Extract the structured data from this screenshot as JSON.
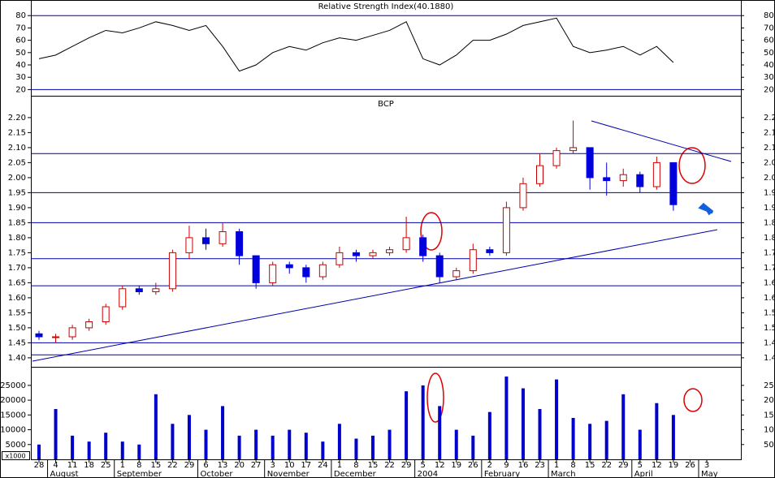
{
  "chart_data": [
    {
      "type": "line",
      "title": "Relative Strength Index(40.1880)",
      "color": "#000000",
      "values": [
        45,
        48,
        55,
        62,
        68,
        66,
        70,
        75,
        72,
        68,
        72,
        55,
        35,
        40,
        50,
        55,
        52,
        58,
        62,
        60,
        64,
        68,
        75,
        45,
        40,
        48,
        60,
        60,
        65,
        72,
        75,
        78,
        55,
        50,
        52,
        55,
        48,
        55,
        42,
        null,
        null
      ],
      "ylim": [
        15,
        92
      ],
      "yticks": [
        20,
        30,
        40,
        50,
        60,
        70,
        80
      ],
      "hlines": [
        80,
        20
      ]
    },
    {
      "type": "candlestick",
      "title": "BCP",
      "categories": [
        "28",
        "4",
        "11",
        "18",
        "25",
        "1",
        "8",
        "15",
        "22",
        "29",
        "6",
        "13",
        "20",
        "27",
        "3",
        "10",
        "17",
        "24",
        "1",
        "8",
        "15",
        "22",
        "29",
        "5",
        "12",
        "19",
        "26",
        "2",
        "9",
        "16",
        "23",
        "1",
        "8",
        "15",
        "22",
        "29",
        "5",
        "12",
        "19",
        "26",
        "3"
      ],
      "months": [
        null,
        "August",
        null,
        null,
        null,
        "September",
        null,
        null,
        null,
        null,
        "October",
        null,
        null,
        null,
        "November",
        null,
        null,
        null,
        "December",
        null,
        null,
        null,
        null,
        "2004",
        null,
        null,
        null,
        "February",
        null,
        null,
        null,
        "March",
        null,
        null,
        null,
        null,
        "April",
        null,
        null,
        null,
        "May"
      ],
      "open": [
        1.48,
        1.47,
        1.47,
        1.5,
        1.52,
        1.57,
        1.63,
        1.62,
        1.63,
        1.75,
        1.8,
        1.78,
        1.82,
        1.74,
        1.65,
        1.71,
        1.7,
        1.67,
        1.71,
        1.75,
        1.74,
        1.75,
        1.76,
        1.8,
        1.74,
        1.67,
        1.69,
        1.76,
        1.75,
        1.9,
        1.98,
        2.04,
        2.09,
        2.1,
        2.0,
        1.99,
        2.01,
        1.97,
        2.05,
        null,
        null
      ],
      "high": [
        1.49,
        1.48,
        1.51,
        1.53,
        1.58,
        1.64,
        1.64,
        1.65,
        1.76,
        1.84,
        1.83,
        1.85,
        1.83,
        1.74,
        1.72,
        1.72,
        1.71,
        1.72,
        1.77,
        1.76,
        1.76,
        1.77,
        1.87,
        1.81,
        1.75,
        1.7,
        1.78,
        1.77,
        1.92,
        2.0,
        2.08,
        2.1,
        2.19,
        2.1,
        2.05,
        2.03,
        2.02,
        2.07,
        2.05,
        null,
        null
      ],
      "low": [
        1.46,
        1.45,
        1.46,
        1.49,
        1.51,
        1.56,
        1.61,
        1.61,
        1.62,
        1.73,
        1.76,
        1.77,
        1.71,
        1.63,
        1.64,
        1.68,
        1.65,
        1.66,
        1.7,
        1.72,
        1.73,
        1.74,
        1.75,
        1.72,
        1.65,
        1.66,
        1.68,
        1.74,
        1.74,
        1.89,
        1.97,
        2.03,
        2.08,
        1.96,
        1.94,
        1.97,
        1.95,
        1.96,
        1.89,
        null,
        null
      ],
      "close": [
        1.47,
        1.47,
        1.5,
        1.52,
        1.57,
        1.63,
        1.62,
        1.63,
        1.75,
        1.8,
        1.78,
        1.82,
        1.74,
        1.65,
        1.71,
        1.7,
        1.67,
        1.71,
        1.75,
        1.74,
        1.75,
        1.76,
        1.8,
        1.74,
        1.67,
        1.69,
        1.76,
        1.75,
        1.9,
        1.98,
        2.04,
        2.09,
        2.1,
        2.0,
        1.99,
        2.01,
        1.97,
        2.05,
        1.91,
        null,
        null
      ],
      "up_color": "#cc0000",
      "down_color": "#0000dd",
      "ylim": [
        1.37,
        2.27
      ],
      "yticks": [
        {
          "value": 1.4,
          "label": "1.40"
        },
        1.45,
        {
          "value": 1.5,
          "label": "1.50"
        },
        1.55,
        {
          "value": 1.6,
          "label": "1.60"
        },
        1.65,
        {
          "value": 1.7,
          "label": "1.70"
        },
        1.75,
        {
          "value": 1.8,
          "label": "1.80"
        },
        1.85,
        {
          "value": 1.9,
          "label": "1.90"
        },
        1.95,
        {
          "value": 2.0,
          "label": "2.00"
        },
        2.05,
        {
          "value": 2.1,
          "label": "2.10"
        },
        2.15,
        {
          "value": 2.2,
          "label": "2.20"
        }
      ],
      "hlines": [
        2.08,
        1.95,
        1.85,
        1.73,
        1.64,
        1.45,
        1.41
      ]
    },
    {
      "type": "bar",
      "color": "#0000cc",
      "unit_label": "x1000",
      "values": [
        5000,
        17000,
        8000,
        6000,
        9000,
        6000,
        5000,
        22000,
        12000,
        15000,
        10000,
        18000,
        8000,
        10000,
        8000,
        10000,
        9000,
        6000,
        12000,
        7000,
        8000,
        10000,
        23000,
        25000,
        18000,
        10000,
        8000,
        16000,
        28000,
        24000,
        17000,
        27000,
        14000,
        12000,
        13000,
        22000,
        10000,
        19000,
        15000,
        null,
        null
      ],
      "ylim": [
        0,
        31000
      ],
      "yticks": [
        5000,
        10000,
        15000,
        20000,
        25000
      ]
    }
  ]
}
